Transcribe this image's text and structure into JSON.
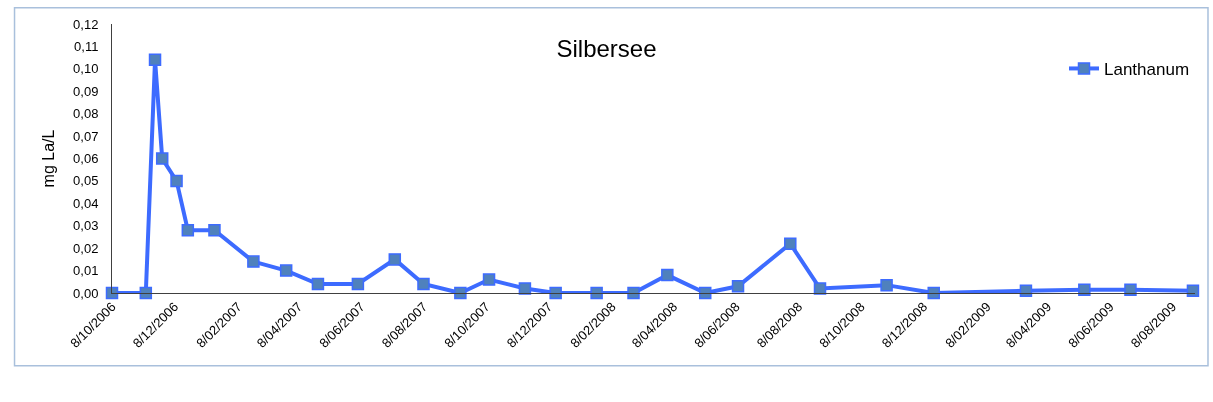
{
  "chart_data": {
    "type": "line",
    "title": "Silbersee",
    "ylabel": "mg La/L",
    "legend": "top right",
    "marker": "square",
    "line_style": "solid",
    "x": [
      "2006-10-08",
      "2006-11-10",
      "2006-11-19",
      "2006-11-26",
      "2006-12-10",
      "2006-12-21",
      "2007-01-16",
      "2007-02-23",
      "2007-03-27",
      "2007-04-27",
      "2007-06-05",
      "2007-07-11",
      "2007-08-08",
      "2007-09-13",
      "2007-10-11",
      "2007-11-15",
      "2007-12-15",
      "2008-01-24",
      "2008-02-29",
      "2008-04-02",
      "2008-05-09",
      "2008-06-10",
      "2008-07-31",
      "2008-08-29",
      "2008-11-02",
      "2008-12-18",
      "2009-03-18",
      "2009-05-14",
      "2009-06-28",
      "2009-08-28"
    ],
    "series": [
      {
        "name": "Lanthanum",
        "color": "#3d6bff",
        "values": [
          0,
          0,
          0.104,
          0.06,
          0.05,
          0.028,
          0.028,
          0.014,
          0.01,
          0.004,
          0.004,
          0.015,
          0.004,
          0,
          0.006,
          0.002,
          0,
          0,
          0,
          0.008,
          0,
          0.003,
          0.022,
          0.002,
          0.0035,
          0,
          0.001,
          0.0015,
          0.0015,
          0.001
        ]
      }
    ],
    "xlim": [
      "2006-10-08",
      "2009-08-30"
    ],
    "xticks": [
      {
        "value": "2006-10-08",
        "label": "8/10/2006"
      },
      {
        "value": "2006-12-08",
        "label": "8/12/2006"
      },
      {
        "value": "2007-02-08",
        "label": "8/02/2007"
      },
      {
        "value": "2007-04-08",
        "label": "8/04/2007"
      },
      {
        "value": "2007-06-08",
        "label": "8/06/2007"
      },
      {
        "value": "2007-08-08",
        "label": "8/08/2007"
      },
      {
        "value": "2007-10-08",
        "label": "8/10/2007"
      },
      {
        "value": "2007-12-08",
        "label": "8/12/2007"
      },
      {
        "value": "2008-02-08",
        "label": "8/02/2008"
      },
      {
        "value": "2008-04-08",
        "label": "8/04/2008"
      },
      {
        "value": "2008-06-08",
        "label": "8/06/2008"
      },
      {
        "value": "2008-08-08",
        "label": "8/08/2008"
      },
      {
        "value": "2008-10-08",
        "label": "8/10/2008"
      },
      {
        "value": "2008-12-08",
        "label": "8/12/2008"
      },
      {
        "value": "2009-02-08",
        "label": "8/02/2009"
      },
      {
        "value": "2009-04-08",
        "label": "8/04/2009"
      },
      {
        "value": "2009-06-08",
        "label": "8/06/2009"
      },
      {
        "value": "2009-08-08",
        "label": "8/08/2009"
      }
    ],
    "ylim": [
      0,
      0.12
    ],
    "yticks": [
      {
        "value": 0,
        "label": "0,00"
      },
      {
        "value": 0.01,
        "label": "0,01"
      },
      {
        "value": 0.02,
        "label": "0,02"
      },
      {
        "value": 0.03,
        "label": "0,03"
      },
      {
        "value": 0.04,
        "label": "0,04"
      },
      {
        "value": 0.05,
        "label": "0,05"
      },
      {
        "value": 0.06,
        "label": "0,06"
      },
      {
        "value": 0.07,
        "label": "0,07"
      },
      {
        "value": 0.08,
        "label": "0,08"
      },
      {
        "value": 0.09,
        "label": "0,09"
      },
      {
        "value": 0.1,
        "label": "0,10"
      },
      {
        "value": 0.11,
        "label": "0,11"
      },
      {
        "value": 0.12,
        "label": "0,12"
      }
    ]
  }
}
